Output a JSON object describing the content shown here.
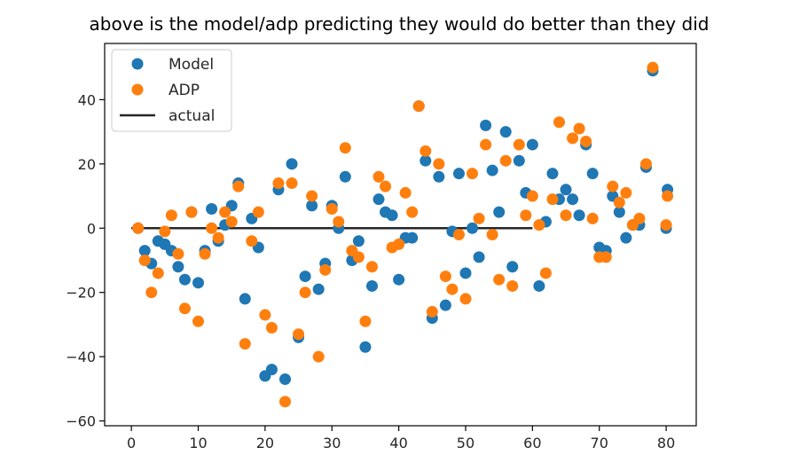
{
  "chart_data": {
    "type": "scatter",
    "title": "above is the model/adp predicting they would do better than they did",
    "xlabel": "",
    "ylabel": "",
    "xlim": [
      -4,
      84.5
    ],
    "ylim": [
      -61.5,
      57.5
    ],
    "xticks": [
      0,
      10,
      20,
      30,
      40,
      50,
      60,
      70,
      80
    ],
    "yticks": [
      40,
      20,
      0,
      -20,
      -40,
      -60
    ],
    "xtick_labels": [
      "0",
      "10",
      "20",
      "30",
      "40",
      "50",
      "60",
      "70",
      "80"
    ],
    "ytick_labels": [
      "40",
      "20",
      "0",
      "−20",
      "−40",
      "−60"
    ],
    "grid": false,
    "legend": {
      "position": "top-left",
      "entries": [
        {
          "label": "Model",
          "kind": "marker",
          "color": "#1f77b4"
        },
        {
          "label": "ADP",
          "kind": "marker",
          "color": "#ff7f0e"
        },
        {
          "label": "actual",
          "kind": "line",
          "color": "#262626"
        }
      ]
    },
    "series": [
      {
        "name": "Model",
        "color": "#1f77b4",
        "points": [
          [
            1,
            0
          ],
          [
            2,
            -7
          ],
          [
            3,
            -11
          ],
          [
            4,
            -4
          ],
          [
            5,
            -5
          ],
          [
            6,
            -7
          ],
          [
            7,
            -12
          ],
          [
            8,
            -16
          ],
          [
            9,
            5
          ],
          [
            10,
            -17
          ],
          [
            11,
            -7
          ],
          [
            12,
            6
          ],
          [
            13,
            -4
          ],
          [
            14,
            1
          ],
          [
            15,
            7
          ],
          [
            16,
            14
          ],
          [
            17,
            -22
          ],
          [
            18,
            3
          ],
          [
            19,
            -6
          ],
          [
            20,
            -46
          ],
          [
            21,
            -44
          ],
          [
            22,
            12
          ],
          [
            23,
            -47
          ],
          [
            24,
            20
          ],
          [
            25,
            -34
          ],
          [
            26,
            -15
          ],
          [
            27,
            7
          ],
          [
            28,
            -19
          ],
          [
            29,
            -11
          ],
          [
            30,
            7
          ],
          [
            31,
            0
          ],
          [
            32,
            16
          ],
          [
            33,
            -10
          ],
          [
            34,
            -4
          ],
          [
            35,
            -37
          ],
          [
            36,
            -18
          ],
          [
            37,
            9
          ],
          [
            38,
            5
          ],
          [
            39,
            4
          ],
          [
            40,
            -16
          ],
          [
            41,
            -3
          ],
          [
            42,
            -3
          ],
          [
            43,
            38
          ],
          [
            44,
            21
          ],
          [
            45,
            -28
          ],
          [
            46,
            16
          ],
          [
            47,
            -24
          ],
          [
            48,
            -1
          ],
          [
            49,
            17
          ],
          [
            50,
            -14
          ],
          [
            51,
            0
          ],
          [
            52,
            -9
          ],
          [
            53,
            32
          ],
          [
            54,
            18
          ],
          [
            55,
            5
          ],
          [
            56,
            30
          ],
          [
            57,
            -12
          ],
          [
            58,
            21
          ],
          [
            59,
            11
          ],
          [
            60,
            26
          ],
          [
            61,
            -18
          ],
          [
            62,
            2
          ],
          [
            63,
            17
          ],
          [
            64,
            9
          ],
          [
            65,
            12
          ],
          [
            66,
            9
          ],
          [
            67,
            4
          ],
          [
            68,
            26
          ],
          [
            69,
            17
          ],
          [
            70,
            -6
          ],
          [
            71,
            -7
          ],
          [
            72,
            10
          ],
          [
            73,
            5
          ],
          [
            74,
            -3
          ],
          [
            75,
            1
          ],
          [
            76,
            1
          ],
          [
            77,
            19
          ],
          [
            78,
            49
          ],
          [
            80,
            0
          ],
          [
            80.2,
            12
          ]
        ]
      },
      {
        "name": "ADP",
        "color": "#ff7f0e",
        "points": [
          [
            1,
            0
          ],
          [
            2,
            -10
          ],
          [
            3,
            -20
          ],
          [
            4,
            -14
          ],
          [
            5,
            -1
          ],
          [
            6,
            4
          ],
          [
            7,
            -8
          ],
          [
            8,
            -25
          ],
          [
            9,
            5
          ],
          [
            10,
            -29
          ],
          [
            11,
            -8
          ],
          [
            12,
            0
          ],
          [
            13,
            -3
          ],
          [
            14,
            5
          ],
          [
            15,
            2
          ],
          [
            16,
            13
          ],
          [
            17,
            -36
          ],
          [
            18,
            -4
          ],
          [
            19,
            5
          ],
          [
            20,
            -27
          ],
          [
            21,
            -31
          ],
          [
            22,
            14
          ],
          [
            23,
            -54
          ],
          [
            24,
            14
          ],
          [
            25,
            -33
          ],
          [
            26,
            -20
          ],
          [
            27,
            10
          ],
          [
            28,
            -40
          ],
          [
            29,
            -13
          ],
          [
            30,
            6
          ],
          [
            31,
            2
          ],
          [
            32,
            25
          ],
          [
            33,
            -7
          ],
          [
            34,
            -9
          ],
          [
            35,
            -29
          ],
          [
            36,
            -12
          ],
          [
            37,
            16
          ],
          [
            38,
            13
          ],
          [
            39,
            -6
          ],
          [
            40,
            -5
          ],
          [
            41,
            11
          ],
          [
            42,
            5
          ],
          [
            43,
            38
          ],
          [
            44,
            24
          ],
          [
            45,
            -26
          ],
          [
            46,
            20
          ],
          [
            47,
            -15
          ],
          [
            48,
            -19
          ],
          [
            49,
            -2
          ],
          [
            50,
            -22
          ],
          [
            51,
            17
          ],
          [
            52,
            3
          ],
          [
            53,
            26
          ],
          [
            54,
            -2
          ],
          [
            55,
            -16
          ],
          [
            56,
            21
          ],
          [
            57,
            -18
          ],
          [
            58,
            26
          ],
          [
            59,
            4
          ],
          [
            60,
            10
          ],
          [
            61,
            1
          ],
          [
            62,
            -14
          ],
          [
            63,
            9
          ],
          [
            64,
            33
          ],
          [
            65,
            4
          ],
          [
            66,
            28
          ],
          [
            67,
            31
          ],
          [
            68,
            27
          ],
          [
            69,
            3
          ],
          [
            70,
            -9
          ],
          [
            71,
            -9
          ],
          [
            72,
            13
          ],
          [
            73,
            8
          ],
          [
            74,
            11
          ],
          [
            75,
            1
          ],
          [
            76,
            3
          ],
          [
            77,
            20
          ],
          [
            78,
            50
          ],
          [
            80,
            1
          ],
          [
            80.2,
            10
          ]
        ]
      },
      {
        "name": "actual",
        "kind": "line",
        "color": "#262626",
        "points": [
          [
            0,
            0
          ],
          [
            60,
            0
          ]
        ]
      }
    ]
  }
}
